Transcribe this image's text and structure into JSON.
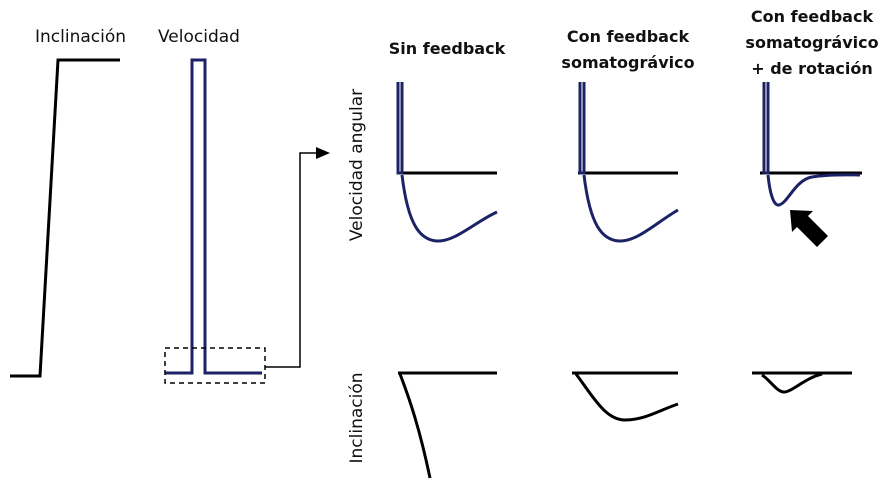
{
  "traces": {
    "tilt": "Inclinación",
    "velocity": "Velocidad"
  },
  "columns": [
    {
      "lines": [
        "Sin feedback"
      ]
    },
    {
      "lines": [
        "Con feedback",
        "somatográvico"
      ]
    },
    {
      "lines": [
        "Con feedback",
        "somatográvico",
        "+ de rotación"
      ]
    }
  ],
  "rows": [
    "Velocidad angular",
    "Inclinación"
  ]
}
